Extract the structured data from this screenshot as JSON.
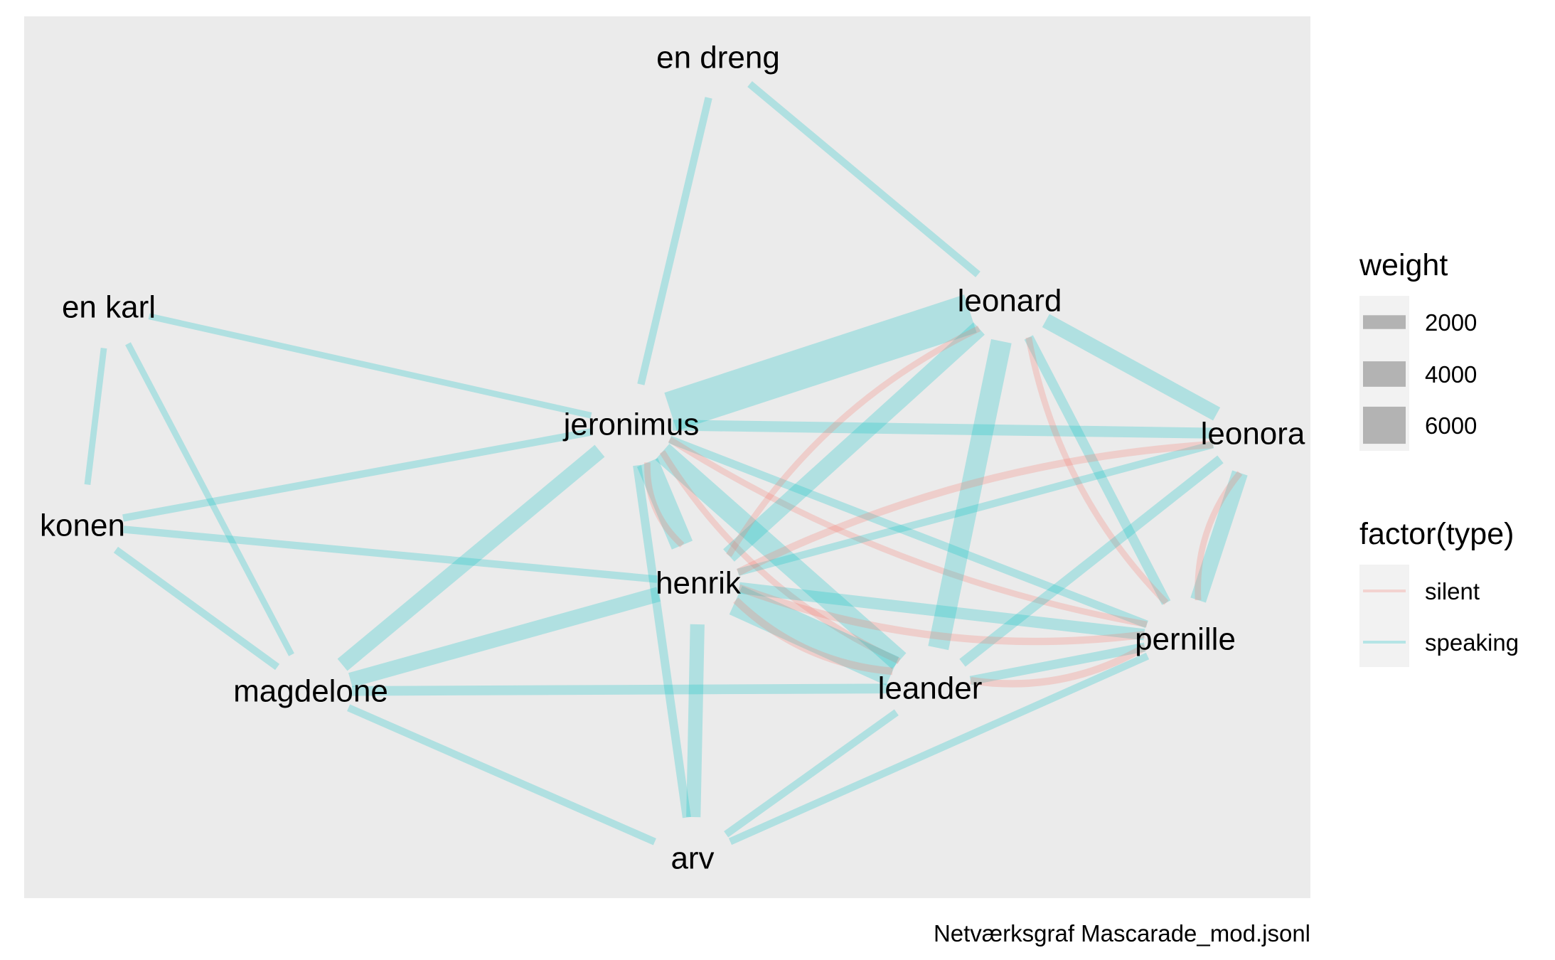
{
  "caption": "Netværksgraf Mascarade_mod.jsonl",
  "colors": {
    "panel": "#EBEBEB",
    "silent": "#F8766D",
    "speaking": "#00BFC4",
    "legend_key_bg": "#F2F2F2",
    "legend_swatch": "#B3B3B3"
  },
  "legend": {
    "weight": {
      "title": "weight",
      "items": [
        {
          "label": "2000",
          "value": 2000
        },
        {
          "label": "4000",
          "value": 4000
        },
        {
          "label": "6000",
          "value": 6000
        }
      ]
    },
    "type": {
      "title": "factor(type)",
      "items": [
        {
          "label": "silent",
          "type": "silent"
        },
        {
          "label": "speaking",
          "type": "speaking"
        }
      ]
    }
  },
  "nodes": [
    {
      "id": "en dreng",
      "label": "en dreng"
    },
    {
      "id": "en karl",
      "label": "en karl"
    },
    {
      "id": "leonard",
      "label": "leonard"
    },
    {
      "id": "jeronimus",
      "label": "jeronimus"
    },
    {
      "id": "leonora",
      "label": "leonora"
    },
    {
      "id": "konen",
      "label": "konen"
    },
    {
      "id": "henrik",
      "label": "henrik"
    },
    {
      "id": "pernille",
      "label": "pernille"
    },
    {
      "id": "magdelone",
      "label": "magdelone"
    },
    {
      "id": "leander",
      "label": "leander"
    },
    {
      "id": "arv",
      "label": "arv"
    }
  ],
  "edges": [
    {
      "source": "en dreng",
      "target": "jeronimus",
      "type": "speaking",
      "weight": 900
    },
    {
      "source": "en dreng",
      "target": "leonard",
      "type": "speaking",
      "weight": 900
    },
    {
      "source": "en karl",
      "target": "jeronimus",
      "type": "speaking",
      "weight": 700
    },
    {
      "source": "en karl",
      "target": "konen",
      "type": "speaking",
      "weight": 700
    },
    {
      "source": "en karl",
      "target": "magdelone",
      "type": "speaking",
      "weight": 700
    },
    {
      "source": "konen",
      "target": "jeronimus",
      "type": "speaking",
      "weight": 900
    },
    {
      "source": "konen",
      "target": "henrik",
      "type": "speaking",
      "weight": 900
    },
    {
      "source": "konen",
      "target": "magdelone",
      "type": "speaking",
      "weight": 900
    },
    {
      "source": "jeronimus",
      "target": "leonard",
      "type": "speaking",
      "weight": 6500
    },
    {
      "source": "jeronimus",
      "target": "leonora",
      "type": "speaking",
      "weight": 1500
    },
    {
      "source": "jeronimus",
      "target": "magdelone",
      "type": "speaking",
      "weight": 2300
    },
    {
      "source": "jeronimus",
      "target": "henrik",
      "type": "speaking",
      "weight": 3500
    },
    {
      "source": "jeronimus",
      "target": "henrik",
      "type": "silent",
      "weight": 700
    },
    {
      "source": "jeronimus",
      "target": "leander",
      "type": "speaking",
      "weight": 3300
    },
    {
      "source": "jeronimus",
      "target": "leander",
      "type": "silent",
      "weight": 700
    },
    {
      "source": "jeronimus",
      "target": "pernille",
      "type": "speaking",
      "weight": 1000
    },
    {
      "source": "jeronimus",
      "target": "pernille",
      "type": "silent",
      "weight": 700
    },
    {
      "source": "jeronimus",
      "target": "arv",
      "type": "speaking",
      "weight": 1100
    },
    {
      "source": "leonard",
      "target": "henrik",
      "type": "speaking",
      "weight": 2500
    },
    {
      "source": "leonard",
      "target": "henrik",
      "type": "silent",
      "weight": 700
    },
    {
      "source": "leonard",
      "target": "leander",
      "type": "speaking",
      "weight": 3200
    },
    {
      "source": "leonard",
      "target": "leonora",
      "type": "speaking",
      "weight": 2200
    },
    {
      "source": "leonard",
      "target": "pernille",
      "type": "speaking",
      "weight": 1300
    },
    {
      "source": "leonard",
      "target": "pernille",
      "type": "silent",
      "weight": 700
    },
    {
      "source": "leonora",
      "target": "henrik",
      "type": "speaking",
      "weight": 900
    },
    {
      "source": "leonora",
      "target": "henrik",
      "type": "silent",
      "weight": 900
    },
    {
      "source": "leonora",
      "target": "leander",
      "type": "speaking",
      "weight": 1300
    },
    {
      "source": "leonora",
      "target": "pernille",
      "type": "speaking",
      "weight": 2400
    },
    {
      "source": "leonora",
      "target": "pernille",
      "type": "silent",
      "weight": 700
    },
    {
      "source": "henrik",
      "target": "magdelone",
      "type": "speaking",
      "weight": 2200
    },
    {
      "source": "henrik",
      "target": "leander",
      "type": "speaking",
      "weight": 5000
    },
    {
      "source": "henrik",
      "target": "leander",
      "type": "silent",
      "weight": 900
    },
    {
      "source": "henrik",
      "target": "pernille",
      "type": "speaking",
      "weight": 1600
    },
    {
      "source": "henrik",
      "target": "pernille",
      "type": "silent",
      "weight": 900
    },
    {
      "source": "henrik",
      "target": "arv",
      "type": "speaking",
      "weight": 2100
    },
    {
      "source": "magdelone",
      "target": "leander",
      "type": "speaking",
      "weight": 1300
    },
    {
      "source": "magdelone",
      "target": "arv",
      "type": "speaking",
      "weight": 900
    },
    {
      "source": "leander",
      "target": "pernille",
      "type": "speaking",
      "weight": 1200
    },
    {
      "source": "leander",
      "target": "pernille",
      "type": "silent",
      "weight": 900
    },
    {
      "source": "leander",
      "target": "arv",
      "type": "speaking",
      "weight": 900
    },
    {
      "source": "pernille",
      "target": "arv",
      "type": "speaking",
      "weight": 900
    }
  ]
}
